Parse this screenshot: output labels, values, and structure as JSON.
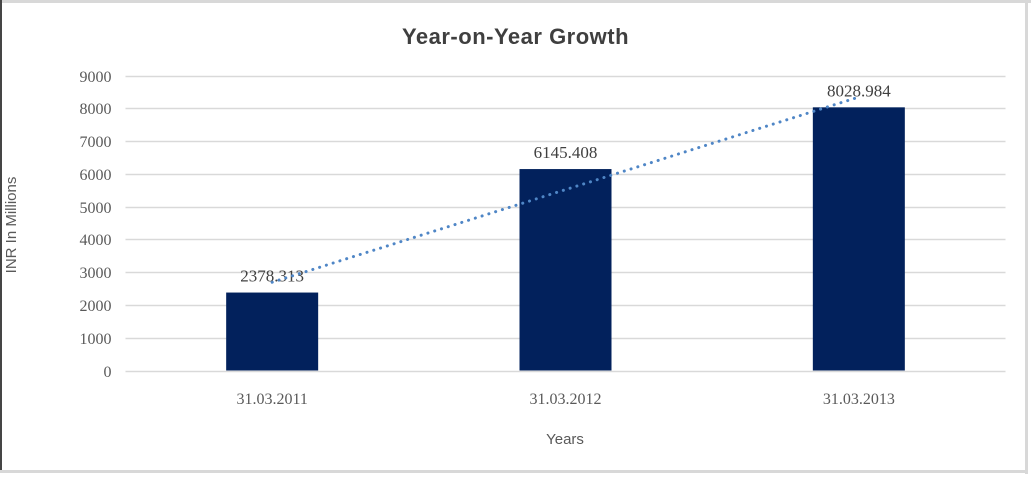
{
  "chart_data": {
    "type": "bar",
    "title": "Year-on-Year Growth",
    "categories": [
      "31.03.2011",
      "31.03.2012",
      "31.03.2013"
    ],
    "values": [
      2378.313,
      6145.408,
      8028.984
    ],
    "data_labels": [
      "2378.313",
      "6145.408",
      "8028.984"
    ],
    "xlabel": "Years",
    "ylabel": "INR In Millions",
    "ylim": [
      0,
      9000
    ],
    "ytick_step": 1000,
    "grid": "horizontal",
    "legend": "none",
    "trendline": {
      "type": "linear",
      "style": "dotted"
    },
    "colors": {
      "bar": "#02215c",
      "trendline": "#4f86c6",
      "gridline": "#d9d9d9",
      "title_text": "#3f3f3f",
      "axis_text": "#595959",
      "data_label_text": "#404040",
      "frame_edge": "#d8d8d8",
      "frame_left_edge": "#454545"
    }
  }
}
